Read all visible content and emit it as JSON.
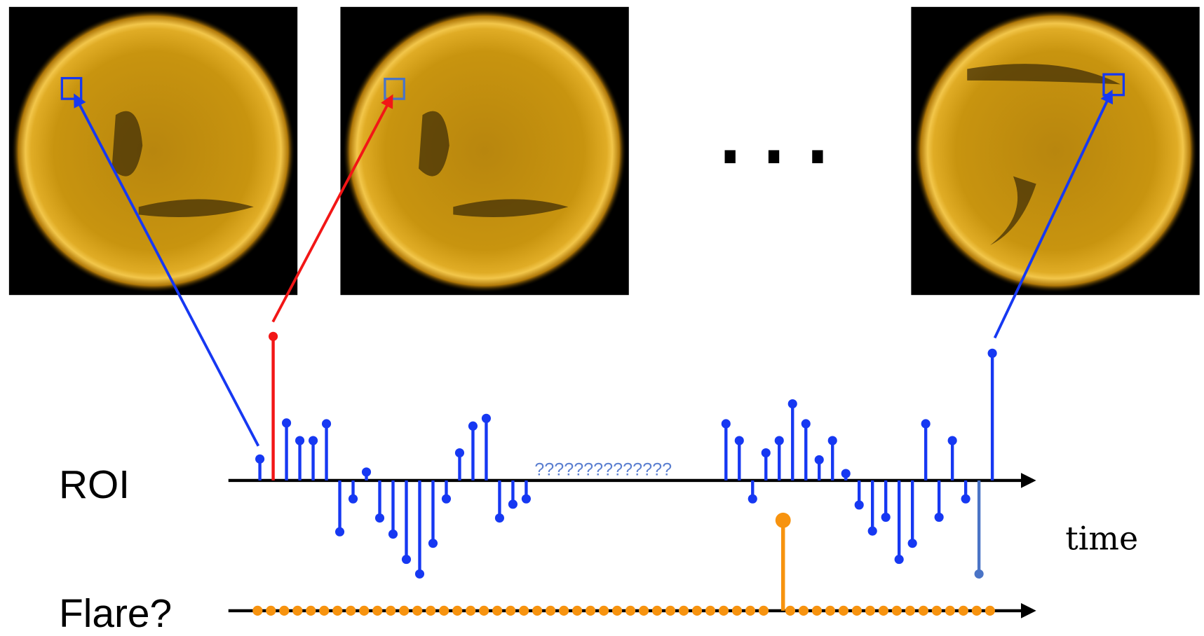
{
  "labels": {
    "roi": "ROI",
    "flare": "Flare?",
    "time": "time",
    "unknown": "??????????????"
  },
  "roi": {
    "color": "#1638f2",
    "highlight": {
      "index": 1,
      "color": "#f21616"
    },
    "faded": {
      "index": 54,
      "color": "#4a74c6"
    },
    "values": [
      28,
      188,
      75,
      52,
      52,
      74,
      -67,
      -24,
      11,
      -49,
      -70,
      -103,
      -122,
      -82,
      -24,
      36,
      71,
      81,
      -49,
      -31,
      -24,
      null,
      null,
      null,
      null,
      null,
      null,
      null,
      null,
      null,
      null,
      null,
      null,
      null,
      null,
      74,
      52,
      -24,
      36,
      52,
      100,
      74,
      27,
      52,
      9,
      -32,
      -66,
      -48,
      -103,
      -82,
      74,
      -48,
      52,
      -24,
      -122,
      166
    ]
  },
  "flare": {
    "color": "#f7930f",
    "values": [
      0,
      0,
      0,
      0,
      0,
      0,
      0,
      0,
      0,
      0,
      0,
      0,
      0,
      0,
      0,
      0,
      0,
      0,
      0,
      0,
      0,
      0,
      0,
      0,
      0,
      0,
      0,
      0,
      0,
      0,
      0,
      0,
      0,
      0,
      0,
      0,
      0,
      0,
      0,
      1,
      0,
      0,
      0,
      0,
      0,
      0,
      0,
      0,
      0,
      0,
      0,
      0,
      0,
      0,
      0,
      0
    ]
  }
}
